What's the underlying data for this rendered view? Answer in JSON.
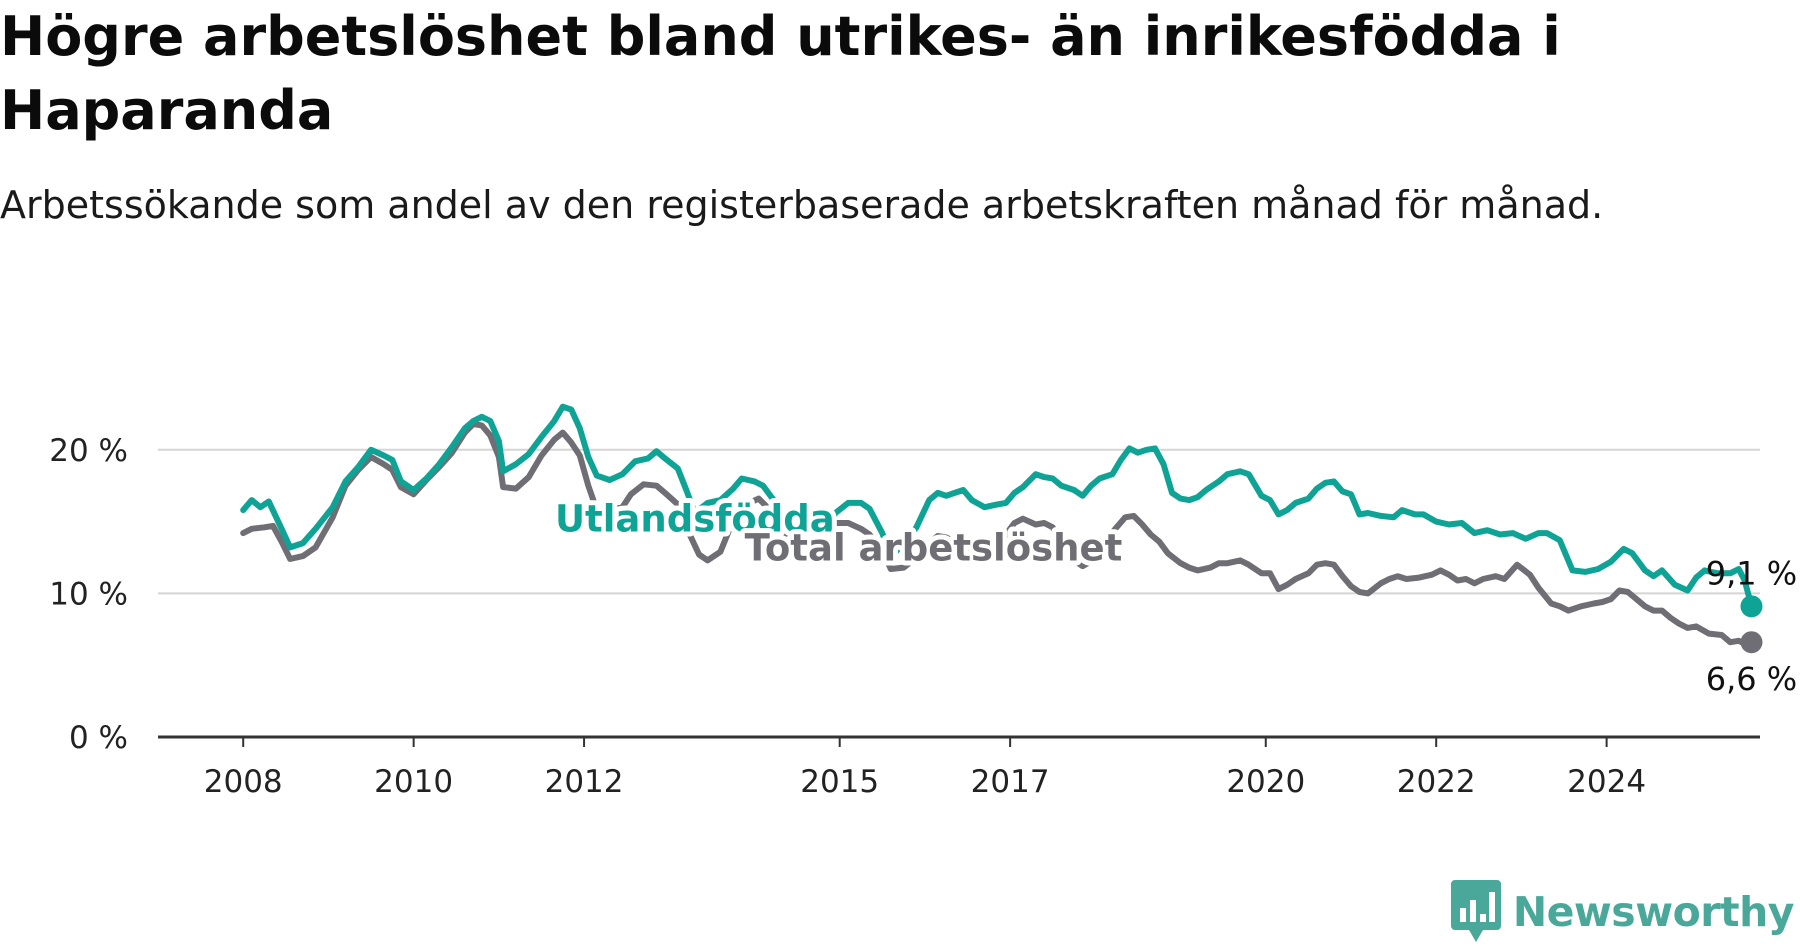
{
  "title": "Högre arbetslöshet bland utrikes- än inrikesfödda i Haparanda",
  "subtitle": "Arbetssökande som andel av den registerbaserade arbetskraften månad för månad.",
  "brand": {
    "name": "Newsworthy",
    "icon": "bar-chart-pin-icon",
    "color": "#4aa89a"
  },
  "colors": {
    "utlandsfodda": "#0fa396",
    "total": "#6f6e75",
    "grid": "#d5d5d5",
    "axis": "#333333"
  },
  "chart_data": {
    "type": "line",
    "title": "Högre arbetslöshet bland utrikes- än inrikesfödda i Haparanda",
    "xlabel": "",
    "ylabel": "",
    "ylim": [
      0,
      25
    ],
    "xlim": [
      2007.0,
      2025.8
    ],
    "grid": "horizontal",
    "legend": "none (inline series labels)",
    "yticks": [
      0,
      10,
      20
    ],
    "ytick_labels": [
      "0 %",
      "10 %",
      "20 %"
    ],
    "xticks": [
      2008,
      2010,
      2012,
      2015,
      2017,
      2020,
      2022,
      2024
    ],
    "xtick_labels": [
      "2008",
      "2010",
      "2012",
      "2015",
      "2017",
      "2020",
      "2022",
      "2024"
    ],
    "series": [
      {
        "name": "Utlandsfödda",
        "key": "utlandsfodda",
        "label_at": [
          2013.3,
          14.3
        ],
        "end_label": "9,1 %",
        "points": [
          [
            2008.0,
            15.8
          ],
          [
            2008.1,
            16.5
          ],
          [
            2008.2,
            16.0
          ],
          [
            2008.3,
            16.4
          ],
          [
            2008.45,
            14.5
          ],
          [
            2008.55,
            13.2
          ],
          [
            2008.7,
            13.5
          ],
          [
            2008.85,
            14.5
          ],
          [
            2009.05,
            16.0
          ],
          [
            2009.2,
            17.8
          ],
          [
            2009.35,
            18.8
          ],
          [
            2009.5,
            20.0
          ],
          [
            2009.65,
            19.6
          ],
          [
            2009.75,
            19.3
          ],
          [
            2009.85,
            17.8
          ],
          [
            2010.0,
            17.2
          ],
          [
            2010.15,
            18.0
          ],
          [
            2010.3,
            19.0
          ],
          [
            2010.45,
            20.2
          ],
          [
            2010.6,
            21.5
          ],
          [
            2010.7,
            22.0
          ],
          [
            2010.8,
            22.3
          ],
          [
            2010.9,
            22.0
          ],
          [
            2011.0,
            20.6
          ],
          [
            2011.05,
            18.5
          ],
          [
            2011.2,
            19.0
          ],
          [
            2011.35,
            19.7
          ],
          [
            2011.5,
            20.9
          ],
          [
            2011.65,
            22.0
          ],
          [
            2011.75,
            23.0
          ],
          [
            2011.85,
            22.8
          ],
          [
            2011.95,
            21.5
          ],
          [
            2012.05,
            19.5
          ],
          [
            2012.15,
            18.2
          ],
          [
            2012.3,
            17.9
          ],
          [
            2012.45,
            18.3
          ],
          [
            2012.6,
            19.2
          ],
          [
            2012.75,
            19.4
          ],
          [
            2012.85,
            19.9
          ],
          [
            2012.95,
            19.4
          ],
          [
            2013.1,
            18.7
          ],
          [
            2013.2,
            17.2
          ],
          [
            2013.3,
            15.6
          ],
          [
            2013.45,
            16.3
          ],
          [
            2013.6,
            16.5
          ],
          [
            2013.75,
            17.3
          ],
          [
            2013.85,
            18.0
          ],
          [
            2014.0,
            17.8
          ],
          [
            2014.1,
            17.5
          ],
          [
            2014.25,
            16.3
          ],
          [
            2014.4,
            14.3
          ],
          [
            2014.55,
            13.2
          ],
          [
            2014.7,
            13.5
          ],
          [
            2014.85,
            14.5
          ],
          [
            2014.95,
            15.6
          ],
          [
            2015.1,
            16.3
          ],
          [
            2015.25,
            16.3
          ],
          [
            2015.35,
            15.9
          ],
          [
            2015.5,
            14.2
          ],
          [
            2015.6,
            12.5
          ],
          [
            2015.75,
            13.5
          ],
          [
            2015.9,
            14.6
          ],
          [
            2016.05,
            16.5
          ],
          [
            2016.15,
            17.0
          ],
          [
            2016.25,
            16.8
          ],
          [
            2016.35,
            17.0
          ],
          [
            2016.45,
            17.2
          ],
          [
            2016.55,
            16.5
          ],
          [
            2016.7,
            16.0
          ],
          [
            2016.85,
            16.2
          ],
          [
            2016.95,
            16.3
          ],
          [
            2017.05,
            17.0
          ],
          [
            2017.15,
            17.4
          ],
          [
            2017.3,
            18.3
          ],
          [
            2017.4,
            18.1
          ],
          [
            2017.5,
            18.0
          ],
          [
            2017.6,
            17.5
          ],
          [
            2017.75,
            17.2
          ],
          [
            2017.85,
            16.8
          ],
          [
            2017.95,
            17.5
          ],
          [
            2018.05,
            18.0
          ],
          [
            2018.2,
            18.3
          ],
          [
            2018.3,
            19.3
          ],
          [
            2018.4,
            20.1
          ],
          [
            2018.5,
            19.8
          ],
          [
            2018.6,
            20.0
          ],
          [
            2018.7,
            20.1
          ],
          [
            2018.8,
            19.0
          ],
          [
            2018.9,
            17.0
          ],
          [
            2019.0,
            16.6
          ],
          [
            2019.1,
            16.5
          ],
          [
            2019.2,
            16.7
          ],
          [
            2019.3,
            17.2
          ],
          [
            2019.45,
            17.8
          ],
          [
            2019.55,
            18.3
          ],
          [
            2019.7,
            18.5
          ],
          [
            2019.8,
            18.3
          ],
          [
            2019.95,
            16.8
          ],
          [
            2020.05,
            16.5
          ],
          [
            2020.15,
            15.5
          ],
          [
            2020.25,
            15.8
          ],
          [
            2020.35,
            16.3
          ],
          [
            2020.5,
            16.6
          ],
          [
            2020.6,
            17.3
          ],
          [
            2020.7,
            17.7
          ],
          [
            2020.8,
            17.8
          ],
          [
            2020.9,
            17.1
          ],
          [
            2021.0,
            16.9
          ],
          [
            2021.1,
            15.5
          ],
          [
            2021.2,
            15.6
          ],
          [
            2021.35,
            15.4
          ],
          [
            2021.5,
            15.3
          ],
          [
            2021.6,
            15.8
          ],
          [
            2021.75,
            15.5
          ],
          [
            2021.85,
            15.5
          ],
          [
            2022.0,
            15.0
          ],
          [
            2022.15,
            14.8
          ],
          [
            2022.3,
            14.9
          ],
          [
            2022.45,
            14.2
          ],
          [
            2022.6,
            14.4
          ],
          [
            2022.75,
            14.1
          ],
          [
            2022.9,
            14.2
          ],
          [
            2023.05,
            13.8
          ],
          [
            2023.2,
            14.2
          ],
          [
            2023.3,
            14.2
          ],
          [
            2023.45,
            13.7
          ],
          [
            2023.6,
            11.6
          ],
          [
            2023.75,
            11.5
          ],
          [
            2023.9,
            11.7
          ],
          [
            2024.05,
            12.2
          ],
          [
            2024.2,
            13.1
          ],
          [
            2024.3,
            12.8
          ],
          [
            2024.45,
            11.6
          ],
          [
            2024.55,
            11.2
          ],
          [
            2024.65,
            11.6
          ],
          [
            2024.8,
            10.6
          ],
          [
            2024.95,
            10.2
          ],
          [
            2025.05,
            11.1
          ],
          [
            2025.15,
            11.6
          ],
          [
            2025.3,
            11.4
          ],
          [
            2025.45,
            11.4
          ],
          [
            2025.55,
            11.7
          ],
          [
            2025.62,
            10.9
          ],
          [
            2025.7,
            9.1
          ]
        ]
      },
      {
        "name": "Total arbetslöshet",
        "key": "total",
        "label_at": [
          2016.1,
          12.3
        ],
        "end_label": "6,6 %",
        "points": [
          [
            2008.0,
            14.2
          ],
          [
            2008.1,
            14.5
          ],
          [
            2008.25,
            14.6
          ],
          [
            2008.35,
            14.7
          ],
          [
            2008.45,
            13.6
          ],
          [
            2008.55,
            12.4
          ],
          [
            2008.7,
            12.6
          ],
          [
            2008.85,
            13.2
          ],
          [
            2009.05,
            15.3
          ],
          [
            2009.2,
            17.5
          ],
          [
            2009.35,
            18.6
          ],
          [
            2009.5,
            19.5
          ],
          [
            2009.65,
            19.0
          ],
          [
            2009.75,
            18.6
          ],
          [
            2009.85,
            17.4
          ],
          [
            2010.0,
            16.9
          ],
          [
            2010.15,
            17.9
          ],
          [
            2010.3,
            18.8
          ],
          [
            2010.45,
            19.8
          ],
          [
            2010.6,
            21.2
          ],
          [
            2010.7,
            21.8
          ],
          [
            2010.8,
            21.7
          ],
          [
            2010.9,
            21.0
          ],
          [
            2011.0,
            19.5
          ],
          [
            2011.05,
            17.4
          ],
          [
            2011.2,
            17.3
          ],
          [
            2011.35,
            18.1
          ],
          [
            2011.5,
            19.6
          ],
          [
            2011.65,
            20.7
          ],
          [
            2011.75,
            21.2
          ],
          [
            2011.85,
            20.5
          ],
          [
            2011.95,
            19.6
          ],
          [
            2012.05,
            17.5
          ],
          [
            2012.15,
            15.8
          ],
          [
            2012.3,
            15.8
          ],
          [
            2012.45,
            16.0
          ],
          [
            2012.55,
            16.9
          ],
          [
            2012.7,
            17.6
          ],
          [
            2012.85,
            17.5
          ],
          [
            2012.95,
            17.0
          ],
          [
            2013.1,
            16.2
          ],
          [
            2013.2,
            14.6
          ],
          [
            2013.35,
            12.7
          ],
          [
            2013.45,
            12.3
          ],
          [
            2013.6,
            12.9
          ],
          [
            2013.75,
            15.1
          ],
          [
            2013.9,
            16.2
          ],
          [
            2014.05,
            16.6
          ],
          [
            2014.15,
            16.0
          ],
          [
            2014.3,
            15.3
          ],
          [
            2014.4,
            13.6
          ],
          [
            2014.55,
            12.4
          ],
          [
            2014.7,
            13.0
          ],
          [
            2014.85,
            14.3
          ],
          [
            2014.95,
            14.9
          ],
          [
            2015.1,
            14.9
          ],
          [
            2015.25,
            14.5
          ],
          [
            2015.35,
            14.1
          ],
          [
            2015.5,
            13.0
          ],
          [
            2015.6,
            11.7
          ],
          [
            2015.75,
            11.8
          ],
          [
            2015.9,
            12.5
          ],
          [
            2016.05,
            13.5
          ],
          [
            2016.15,
            14.0
          ],
          [
            2016.25,
            13.9
          ],
          [
            2016.35,
            13.6
          ],
          [
            2016.45,
            13.8
          ],
          [
            2016.55,
            12.5
          ],
          [
            2016.7,
            12.3
          ],
          [
            2016.85,
            12.8
          ],
          [
            2016.95,
            14.1
          ],
          [
            2017.05,
            14.9
          ],
          [
            2017.15,
            15.2
          ],
          [
            2017.3,
            14.8
          ],
          [
            2017.4,
            14.9
          ],
          [
            2017.5,
            14.6
          ],
          [
            2017.6,
            13.3
          ],
          [
            2017.75,
            12.3
          ],
          [
            2017.85,
            11.9
          ],
          [
            2018.0,
            12.4
          ],
          [
            2018.1,
            13.5
          ],
          [
            2018.25,
            14.6
          ],
          [
            2018.35,
            15.3
          ],
          [
            2018.45,
            15.4
          ],
          [
            2018.55,
            14.8
          ],
          [
            2018.65,
            14.1
          ],
          [
            2018.75,
            13.6
          ],
          [
            2018.85,
            12.8
          ],
          [
            2019.0,
            12.1
          ],
          [
            2019.1,
            11.8
          ],
          [
            2019.2,
            11.6
          ],
          [
            2019.35,
            11.8
          ],
          [
            2019.45,
            12.1
          ],
          [
            2019.55,
            12.1
          ],
          [
            2019.7,
            12.3
          ],
          [
            2019.8,
            12.0
          ],
          [
            2019.95,
            11.4
          ],
          [
            2020.05,
            11.4
          ],
          [
            2020.15,
            10.3
          ],
          [
            2020.25,
            10.6
          ],
          [
            2020.35,
            11.0
          ],
          [
            2020.5,
            11.4
          ],
          [
            2020.6,
            12.0
          ],
          [
            2020.7,
            12.1
          ],
          [
            2020.8,
            12.0
          ],
          [
            2020.9,
            11.2
          ],
          [
            2021.0,
            10.5
          ],
          [
            2021.1,
            10.1
          ],
          [
            2021.2,
            10.0
          ],
          [
            2021.35,
            10.7
          ],
          [
            2021.45,
            11.0
          ],
          [
            2021.55,
            11.2
          ],
          [
            2021.65,
            11.0
          ],
          [
            2021.8,
            11.1
          ],
          [
            2021.95,
            11.3
          ],
          [
            2022.05,
            11.6
          ],
          [
            2022.15,
            11.3
          ],
          [
            2022.25,
            10.9
          ],
          [
            2022.35,
            11.0
          ],
          [
            2022.45,
            10.7
          ],
          [
            2022.55,
            11.0
          ],
          [
            2022.7,
            11.2
          ],
          [
            2022.8,
            11.0
          ],
          [
            2022.95,
            12.0
          ],
          [
            2023.1,
            11.3
          ],
          [
            2023.2,
            10.4
          ],
          [
            2023.35,
            9.3
          ],
          [
            2023.45,
            9.1
          ],
          [
            2023.55,
            8.8
          ],
          [
            2023.7,
            9.1
          ],
          [
            2023.85,
            9.3
          ],
          [
            2023.95,
            9.4
          ],
          [
            2024.05,
            9.6
          ],
          [
            2024.15,
            10.2
          ],
          [
            2024.25,
            10.1
          ],
          [
            2024.35,
            9.6
          ],
          [
            2024.45,
            9.1
          ],
          [
            2024.55,
            8.8
          ],
          [
            2024.65,
            8.8
          ],
          [
            2024.75,
            8.3
          ],
          [
            2024.85,
            7.9
          ],
          [
            2024.95,
            7.6
          ],
          [
            2025.05,
            7.7
          ],
          [
            2025.2,
            7.2
          ],
          [
            2025.35,
            7.1
          ],
          [
            2025.45,
            6.6
          ],
          [
            2025.55,
            6.7
          ],
          [
            2025.62,
            6.5
          ],
          [
            2025.7,
            6.6
          ]
        ]
      }
    ]
  }
}
